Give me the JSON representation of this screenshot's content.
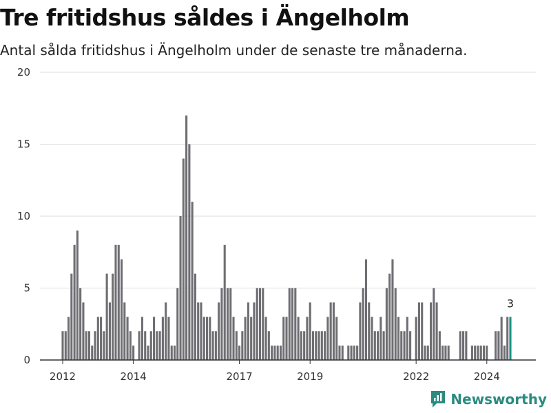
{
  "header": {
    "title": "Tre fritidshus såldes i Ängelholm",
    "subtitle": "Antal sålda fritidshus i Ängelholm under de senaste tre månaderna."
  },
  "brand": {
    "name": "Newsworthy",
    "icon": "newsworthy-logo-icon",
    "color": "#2a8b80"
  },
  "colors": {
    "bar": "#6e6e73",
    "highlight": "#1b9185",
    "grid": "#dddddd"
  },
  "chart_data": {
    "type": "bar",
    "title": "Tre fritidshus såldes i Ängelholm",
    "subtitle": "Antal sålda fritidshus i Ängelholm under de senaste tre månaderna.",
    "xlabel": "",
    "ylabel": "",
    "ylim": [
      0,
      20
    ],
    "yticks": [
      0,
      5,
      10,
      15,
      20
    ],
    "grid": true,
    "x_start": "2012-01",
    "x_end": "2024-09",
    "xtick_labels": [
      {
        "label": "2012",
        "date": "2012-01"
      },
      {
        "label": "2014",
        "date": "2014-01"
      },
      {
        "label": "2017",
        "date": "2017-01"
      },
      {
        "label": "2019",
        "date": "2019-01"
      },
      {
        "label": "2022",
        "date": "2022-01"
      },
      {
        "label": "2024",
        "date": "2024-01"
      }
    ],
    "highlight_last": true,
    "data_labels": [
      {
        "date": "2024-09",
        "value": "3"
      }
    ],
    "values": [
      2,
      2,
      3,
      6,
      8,
      9,
      5,
      4,
      2,
      2,
      1,
      2,
      3,
      3,
      2,
      6,
      4,
      6,
      8,
      8,
      7,
      4,
      3,
      2,
      1,
      0,
      2,
      3,
      2,
      1,
      2,
      3,
      2,
      2,
      3,
      4,
      3,
      1,
      1,
      5,
      10,
      14,
      17,
      15,
      11,
      6,
      4,
      4,
      3,
      3,
      3,
      2,
      2,
      4,
      5,
      8,
      5,
      5,
      3,
      2,
      1,
      2,
      3,
      4,
      3,
      4,
      5,
      5,
      5,
      3,
      2,
      1,
      1,
      1,
      1,
      3,
      3,
      5,
      5,
      5,
      3,
      2,
      2,
      3,
      4,
      2,
      2,
      2,
      2,
      2,
      3,
      4,
      4,
      3,
      1,
      1,
      0,
      1,
      1,
      1,
      1,
      4,
      5,
      7,
      4,
      3,
      2,
      2,
      3,
      2,
      5,
      6,
      7,
      5,
      3,
      2,
      2,
      3,
      2,
      0,
      3,
      4,
      4,
      1,
      1,
      4,
      5,
      4,
      2,
      1,
      1,
      1,
      0,
      0,
      0,
      2,
      2,
      2,
      0,
      1,
      1,
      1,
      1,
      1,
      1,
      0,
      0,
      2,
      2,
      3,
      1,
      3,
      3
    ]
  }
}
